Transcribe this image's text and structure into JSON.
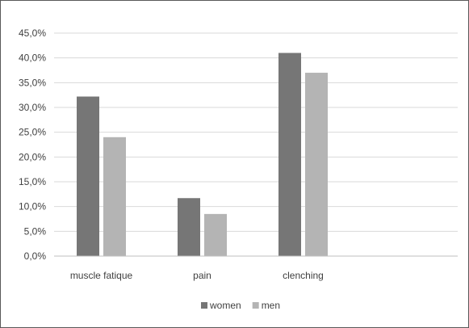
{
  "chart_data": {
    "type": "bar",
    "title": "",
    "xlabel": "",
    "ylabel": "",
    "categories": [
      "muscle fatique",
      "pain",
      "clenching"
    ],
    "series": [
      {
        "name": "women",
        "values": [
          32.2,
          11.7,
          41.0
        ],
        "color": "#767676"
      },
      {
        "name": "men",
        "values": [
          24.0,
          8.5,
          37.0
        ],
        "color": "#b4b4b4"
      }
    ],
    "ylim": [
      0,
      45
    ],
    "yticks": [
      0,
      5,
      10,
      15,
      20,
      25,
      30,
      35,
      40,
      45
    ],
    "ytick_labels": [
      "0,0%",
      "5,0%",
      "10,0%",
      "15,0%",
      "20,0%",
      "25,0%",
      "30,0%",
      "35,0%",
      "40,0%",
      "45,0%"
    ],
    "grid": true,
    "gridline_color": "#d9d9d9",
    "axis_color": "#bfbfbf",
    "legend_placement": "bottom-center"
  }
}
